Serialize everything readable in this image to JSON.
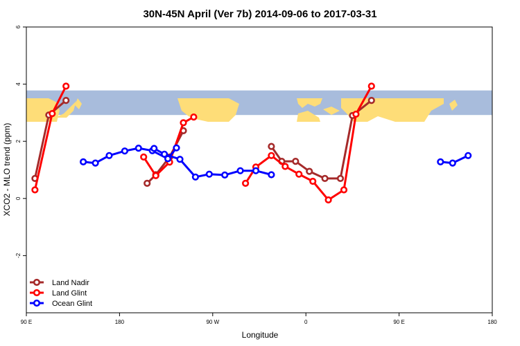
{
  "chart_data": {
    "type": "line",
    "title": "30N-45N April (Ver 7b)   2014-09-06 to 2017-03-31",
    "xlabel": "Longitude",
    "ylabel": "XCO2 - MLO trend (ppm)",
    "xlim": [
      -90,
      180
    ],
    "ylim": [
      -4,
      6
    ],
    "x_ticks": [
      {
        "value": -90,
        "label": "90 E"
      },
      {
        "value": -36,
        "label": "180"
      },
      {
        "value": 18,
        "label": "90 W"
      },
      {
        "value": 72,
        "label": "0"
      },
      {
        "value": 126,
        "label": "90 E"
      },
      {
        "value": 180,
        "label": "180"
      }
    ],
    "y_ticks": [
      {
        "value": -2,
        "label": "-2"
      },
      {
        "value": 0,
        "label": "0"
      },
      {
        "value": 2,
        "label": "2"
      },
      {
        "value": 4,
        "label": "4"
      },
      {
        "value": 6,
        "label": "6"
      }
    ],
    "map_band": {
      "y_from": 2.92,
      "y_to": 3.78,
      "ocean_color": "#a8bcdc",
      "land_color": "#fedd78"
    },
    "legend_position": "bottom-left",
    "series": [
      {
        "name": "Land Nadir",
        "color": "#a52a2a",
        "segments": [
          [
            [
              -85,
              0.7
            ],
            [
              -77,
              2.92
            ],
            [
              -67,
              3.43
            ]
          ],
          [
            [
              -20,
              0.53
            ],
            [
              -15,
              0.83
            ],
            [
              -7,
              1.45
            ],
            [
              1,
              2.37
            ]
          ],
          [
            [
              52,
              1.82
            ],
            [
              58,
              1.3
            ],
            [
              66,
              1.3
            ],
            [
              74,
              0.95
            ],
            [
              83,
              0.7
            ],
            [
              92,
              0.7
            ],
            [
              99,
              2.9
            ],
            [
              110,
              3.43
            ]
          ]
        ]
      },
      {
        "name": "Land Glint",
        "color": "#ff0000",
        "segments": [
          [
            [
              -85,
              0.3
            ],
            [
              -75,
              2.97
            ],
            [
              -67,
              3.93
            ]
          ],
          [
            [
              -22,
              1.45
            ],
            [
              -15,
              0.8
            ],
            [
              -7,
              1.27
            ],
            [
              1,
              2.65
            ],
            [
              7,
              2.85
            ]
          ],
          [
            [
              37,
              0.53
            ],
            [
              43,
              1.1
            ],
            [
              52,
              1.5
            ],
            [
              60,
              1.12
            ],
            [
              68,
              0.85
            ],
            [
              76,
              0.6
            ],
            [
              85,
              -0.05
            ],
            [
              94,
              0.3
            ],
            [
              101,
              2.95
            ],
            [
              110,
              3.93
            ]
          ]
        ]
      },
      {
        "name": "Ocean Glint",
        "color": "#0000ff",
        "segments": [
          [
            [
              -57,
              1.28
            ],
            [
              -50,
              1.24
            ],
            [
              -42,
              1.5
            ],
            [
              -33,
              1.66
            ],
            [
              -25,
              1.76
            ],
            [
              -17,
              1.67
            ],
            [
              -8,
              1.39
            ],
            [
              -3,
              1.77
            ]
          ],
          [
            [
              -16,
              1.75
            ],
            [
              -10,
              1.55
            ],
            [
              -1,
              1.37
            ],
            [
              8,
              0.75
            ],
            [
              16,
              0.85
            ],
            [
              25,
              0.82
            ],
            [
              34,
              0.97
            ],
            [
              43,
              0.97
            ],
            [
              52,
              0.83
            ]
          ],
          [
            [
              150,
              1.28
            ],
            [
              157,
              1.24
            ],
            [
              166,
              1.5
            ]
          ]
        ]
      }
    ]
  }
}
